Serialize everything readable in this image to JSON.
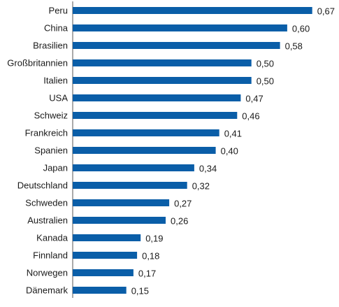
{
  "chart_data": {
    "type": "bar",
    "orientation": "horizontal",
    "categories": [
      "Peru",
      "China",
      "Brasilien",
      "Großbritannien",
      "Italien",
      "USA",
      "Schweiz",
      "Frankreich",
      "Spanien",
      "Japan",
      "Deutschland",
      "Schweden",
      "Australien",
      "Kanada",
      "Finnland",
      "Norwegen",
      "Dänemark"
    ],
    "values": [
      0.67,
      0.6,
      0.58,
      0.5,
      0.5,
      0.47,
      0.46,
      0.41,
      0.4,
      0.34,
      0.32,
      0.27,
      0.26,
      0.19,
      0.18,
      0.17,
      0.15
    ],
    "value_labels": [
      "0,67",
      "0,60",
      "0,58",
      "0,50",
      "0,50",
      "0,47",
      "0,46",
      "0,41",
      "0,40",
      "0,34",
      "0,32",
      "0,27",
      "0,26",
      "0,19",
      "0,18",
      "0,17",
      "0,15"
    ],
    "xlim": [
      0,
      0.7
    ],
    "grid": false,
    "legend": "none",
    "colors": {
      "bar": "#0a5ea8",
      "axis": "#555555",
      "text": "#1a1a1a"
    }
  }
}
